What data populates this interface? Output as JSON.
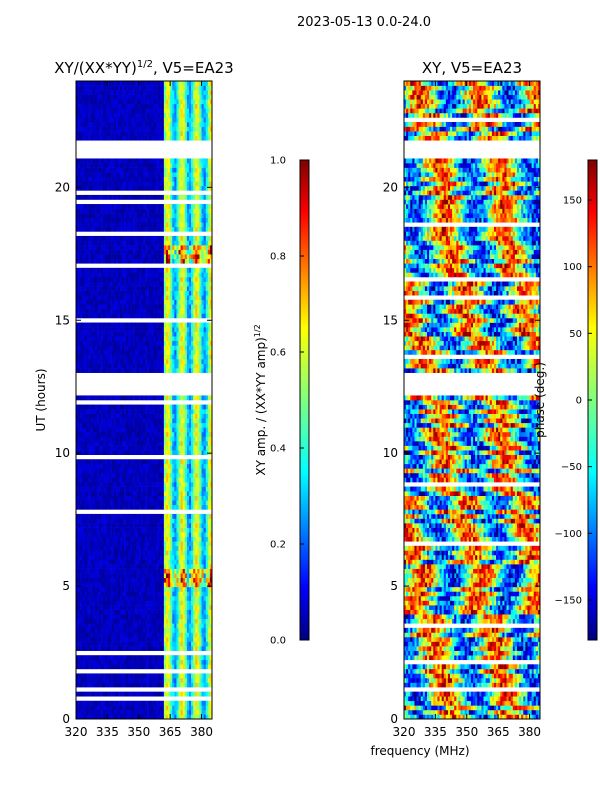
{
  "figure": {
    "suptitle": "2023-05-13 0.0-24.0",
    "xlabel": "frequency (MHz)"
  },
  "chart_data": [
    {
      "type": "heatmap",
      "panel": "amplitude",
      "title_main": "XY/(XX*YY)",
      "title_sup": "1/2",
      "title_tail": ", V5=EA23",
      "ylabel": "UT (hours)",
      "xlim": [
        320,
        385
      ],
      "ylim": [
        0,
        24
      ],
      "xticks": [
        320,
        335,
        350,
        365,
        380
      ],
      "yticks": [
        0,
        5,
        10,
        15,
        20
      ],
      "colorbar": {
        "label_main": "XY amp. / (XX*YY amp)",
        "label_sup": "1/2",
        "range": [
          0.0,
          1.0
        ],
        "ticks": [
          "0.0",
          "0.2",
          "0.4",
          "0.6",
          "0.8",
          "1.0"
        ],
        "colormap": "jet"
      },
      "gaps_hours": [
        [
          21.1,
          21.8
        ],
        [
          12.1,
          13.1
        ],
        [
          10.9,
          11.0
        ]
      ],
      "notable": "near-zero amplitude below ~362 MHz; bright bands 362-385 MHz, peaks near 17.5 h and 5.3 h"
    },
    {
      "type": "heatmap",
      "panel": "phase",
      "title": "XY, V5=EA23",
      "xlim": [
        320,
        385
      ],
      "ylim": [
        0,
        24
      ],
      "xticks": [
        320,
        335,
        350,
        365,
        380
      ],
      "yticks": [
        0,
        5,
        10,
        15,
        20
      ],
      "colorbar": {
        "label": "phase (deg.)",
        "range": [
          -180,
          180
        ],
        "ticks": [
          "150",
          "100",
          "50",
          "0",
          "−50",
          "−100",
          "−150"
        ],
        "colormap": "jet"
      },
      "gaps_hours": [
        [
          21.1,
          21.8
        ],
        [
          12.1,
          13.1
        ],
        [
          10.9,
          11.0
        ]
      ],
      "notable": "phase spans full range with mixed red/cyan bands across all frequencies"
    }
  ],
  "colors": {
    "jet": [
      "#00007f",
      "#0000ff",
      "#007fff",
      "#00ffff",
      "#7fff7f",
      "#ffff00",
      "#ff7f00",
      "#ff0000",
      "#7f0000"
    ],
    "frame": "#000000",
    "gap": "#ffffff"
  }
}
